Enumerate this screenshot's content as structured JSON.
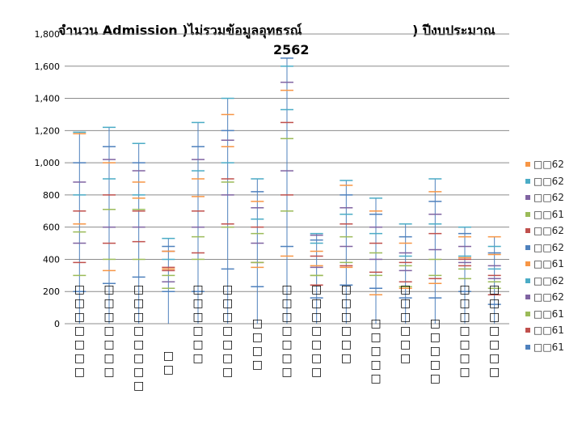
{
  "chart_data": {
    "type": "line",
    "title_line1_left": "จำนวน  Admission )ไม่รวมข้อมูลอุทธรณ์",
    "title_line1_right": ") ปีงบประมาณ",
    "title_line2": "2562",
    "ylim": [
      0,
      1800
    ],
    "yticks": [
      "0",
      "200",
      "400",
      "600",
      "800",
      "1,000",
      "1,200",
      "1,400",
      "1,600",
      "1,800"
    ],
    "categories": [
      "□□□□□□□",
      "□□□□□□□",
      "□□□□□□□□",
      "□□",
      "□□□□□□",
      "□□□□□□□",
      "□□□□",
      "□□□□□□□",
      "□□□□□□□",
      "□□□□□□",
      "□□□□□",
      "□□□□□□",
      "□□□□□",
      "□□□□□□□",
      "□□□□□□□"
    ],
    "series": [
      {
        "name": "□□62",
        "color": "#f79646",
        "values": [
          620,
          330,
          780,
          340,
          790,
          1100,
          350,
          420,
          360,
          350,
          180,
          220,
          250,
          410,
          540
        ]
      },
      {
        "name": "□□62",
        "color": "#4bacc6",
        "values": [
          1190,
          1220,
          1120,
          530,
          1250,
          1400,
          900,
          1600,
          560,
          890,
          780,
          620,
          900,
          600,
          480
        ]
      },
      {
        "name": "□□62",
        "color": "#8064a2",
        "values": [
          880,
          1020,
          950,
          450,
          1020,
          1140,
          720,
          1500,
          550,
          720,
          600,
          440,
          680,
          480,
          360
        ]
      },
      {
        "name": "□□61",
        "color": "#9bbb59",
        "values": [
          570,
          710,
          710,
          300,
          540,
          880,
          560,
          1150,
          300,
          540,
          440,
          360,
          400,
          340,
          260
        ]
      },
      {
        "name": "□□62",
        "color": "#c0504d",
        "values": [
          380,
          500,
          510,
          330,
          440,
          620,
          380,
          800,
          240,
          360,
          320,
          260,
          280,
          360,
          180
        ]
      },
      {
        "name": "□□62",
        "color": "#4f81bd",
        "values": [
          200,
          250,
          290,
          200,
          200,
          340,
          230,
          480,
          160,
          240,
          220,
          160,
          160,
          200,
          120
        ]
      },
      {
        "name": "□□61",
        "color": "#f79646",
        "values": [
          1180,
          1000,
          880,
          450,
          900,
          1300,
          760,
          1450,
          450,
          860,
          700,
          500,
          820,
          540,
          430
        ]
      },
      {
        "name": "□□62",
        "color": "#4bacc6",
        "values": [
          800,
          900,
          800,
          400,
          950,
          1000,
          650,
          1330,
          500,
          680,
          560,
          420,
          620,
          420,
          340
        ]
      },
      {
        "name": "□□62",
        "color": "#8064a2",
        "values": [
          500,
          600,
          600,
          260,
          600,
          800,
          500,
          950,
          350,
          480,
          400,
          330,
          460,
          380,
          280
        ]
      },
      {
        "name": "□□61",
        "color": "#9bbb59",
        "values": [
          300,
          400,
          400,
          220,
          400,
          600,
          380,
          700,
          300,
          380,
          300,
          230,
          300,
          280,
          220
        ]
      },
      {
        "name": "□□61",
        "color": "#c0504d",
        "values": [
          700,
          800,
          700,
          350,
          700,
          900,
          600,
          1250,
          420,
          620,
          500,
          380,
          560,
          400,
          300
        ]
      },
      {
        "name": "□□61",
        "color": "#4f81bd",
        "values": [
          1000,
          1100,
          1000,
          480,
          1100,
          1200,
          820,
          1650,
          520,
          800,
          680,
          540,
          760,
          560,
          440
        ]
      }
    ],
    "legend": [
      "□□62",
      "□□62",
      "□□62",
      "□□61",
      "□□62",
      "□□62",
      "□□61",
      "□□62",
      "□□62",
      "□□61",
      "□□61",
      "□□61"
    ]
  }
}
